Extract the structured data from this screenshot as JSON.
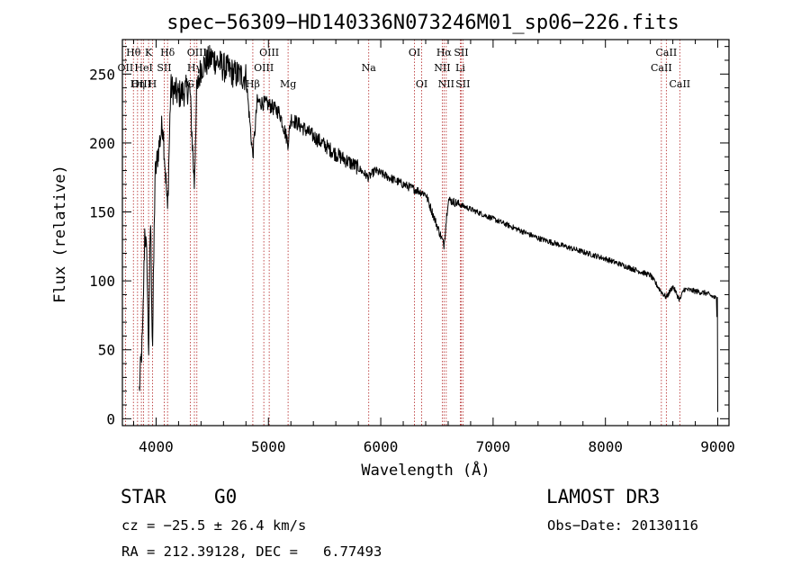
{
  "chart_data": {
    "type": "line",
    "title": "spec−56309−HD140336N073246M01_sp06−226.fits",
    "xlabel": "Wavelength (Å)",
    "ylabel": "Flux (relative)",
    "xlim": [
      3700,
      9100
    ],
    "ylim": [
      -5,
      275
    ],
    "x_ticks": [
      4000,
      5000,
      6000,
      7000,
      8000,
      9000
    ],
    "x_tick_labels": [
      "4000",
      "5000",
      "6000",
      "7000",
      "8000",
      "9000"
    ],
    "y_ticks": [
      0,
      50,
      100,
      150,
      200,
      250
    ],
    "y_tick_labels": [
      "0",
      "50",
      "100",
      "150",
      "200",
      "250"
    ],
    "line_color": "#000000",
    "marker_color": "#b22222",
    "spectrum_anchors": [
      [
        3850,
        20
      ],
      [
        3880,
        60
      ],
      [
        3900,
        140
      ],
      [
        3920,
        110
      ],
      [
        3933,
        45
      ],
      [
        3950,
        150
      ],
      [
        3968,
        50
      ],
      [
        3990,
        175
      ],
      [
        4020,
        195
      ],
      [
        4060,
        215
      ],
      [
        4102,
        150
      ],
      [
        4130,
        240
      ],
      [
        4200,
        235
      ],
      [
        4300,
        240
      ],
      [
        4340,
        170
      ],
      [
        4360,
        235
      ],
      [
        4400,
        255
      ],
      [
        4500,
        262
      ],
      [
        4600,
        255
      ],
      [
        4700,
        250
      ],
      [
        4800,
        248
      ],
      [
        4861,
        190
      ],
      [
        4900,
        230
      ],
      [
        5000,
        228
      ],
      [
        5100,
        222
      ],
      [
        5175,
        200
      ],
      [
        5200,
        218
      ],
      [
        5400,
        205
      ],
      [
        5600,
        192
      ],
      [
        5800,
        182
      ],
      [
        5890,
        175
      ],
      [
        5950,
        180
      ],
      [
        6200,
        170
      ],
      [
        6400,
        163
      ],
      [
        6563,
        126
      ],
      [
        6600,
        159
      ],
      [
        6800,
        152
      ],
      [
        7000,
        145
      ],
      [
        7200,
        138
      ],
      [
        7400,
        131
      ],
      [
        7600,
        126
      ],
      [
        7800,
        121
      ],
      [
        8000,
        116
      ],
      [
        8200,
        110
      ],
      [
        8400,
        104
      ],
      [
        8498,
        92
      ],
      [
        8542,
        88
      ],
      [
        8600,
        96
      ],
      [
        8662,
        86
      ],
      [
        8700,
        94
      ],
      [
        8900,
        91
      ],
      [
        8990,
        87
      ],
      [
        9000,
        5
      ]
    ],
    "lines": [
      {
        "label": "Hθ",
        "wavelength": 3798,
        "row": 0
      },
      {
        "label": "OII",
        "wavelength": 3727,
        "row": 1
      },
      {
        "label": "OIII",
        "wavelength": 3869,
        "row": 2
      },
      {
        "label": "K",
        "wavelength": 3933,
        "row": 0
      },
      {
        "label": "HeI",
        "wavelength": 3889,
        "row": 1
      },
      {
        "label": "Hη",
        "wavelength": 3835,
        "row": 2
      },
      {
        "label": "SII",
        "wavelength": 4072,
        "row": 1
      },
      {
        "label": "H",
        "wavelength": 3968,
        "row": 2
      },
      {
        "label": "Hδ",
        "wavelength": 4102,
        "row": 0
      },
      {
        "label": "G",
        "wavelength": 4304,
        "row": 2
      },
      {
        "label": "OIII",
        "wavelength": 4363,
        "row": 0
      },
      {
        "label": "Hγ",
        "wavelength": 4341,
        "row": 1
      },
      {
        "label": "Hβ",
        "wavelength": 4861,
        "row": 2
      },
      {
        "label": "OIII",
        "wavelength": 5007,
        "row": 0
      },
      {
        "label": "OIII",
        "wavelength": 4959,
        "row": 1
      },
      {
        "label": "Mg",
        "wavelength": 5175,
        "row": 2
      },
      {
        "label": "Na",
        "wavelength": 5893,
        "row": 1
      },
      {
        "label": "OI",
        "wavelength": 6300,
        "row": 0
      },
      {
        "label": "OI",
        "wavelength": 6364,
        "row": 2
      },
      {
        "label": "Hα",
        "wavelength": 6563,
        "row": 0
      },
      {
        "label": "NII",
        "wavelength": 6548,
        "row": 1
      },
      {
        "label": "NII",
        "wavelength": 6583,
        "row": 2
      },
      {
        "label": "SII",
        "wavelength": 6716,
        "row": 0
      },
      {
        "label": "Li",
        "wavelength": 6708,
        "row": 1
      },
      {
        "label": "SII",
        "wavelength": 6731,
        "row": 2
      },
      {
        "label": "CaII",
        "wavelength": 8542,
        "row": 0
      },
      {
        "label": "CaII",
        "wavelength": 8498,
        "row": 1
      },
      {
        "label": "CaII",
        "wavelength": 8662,
        "row": 2
      }
    ]
  },
  "info": {
    "object_class": "STAR",
    "subclass": "G0",
    "survey": "LAMOST DR3",
    "redshift": "cz = −25.5 ± 26.4 km/s",
    "obs_date": "Obs−Date: 20130116",
    "coords": "RA = 212.39128, DEC =   6.77493"
  }
}
